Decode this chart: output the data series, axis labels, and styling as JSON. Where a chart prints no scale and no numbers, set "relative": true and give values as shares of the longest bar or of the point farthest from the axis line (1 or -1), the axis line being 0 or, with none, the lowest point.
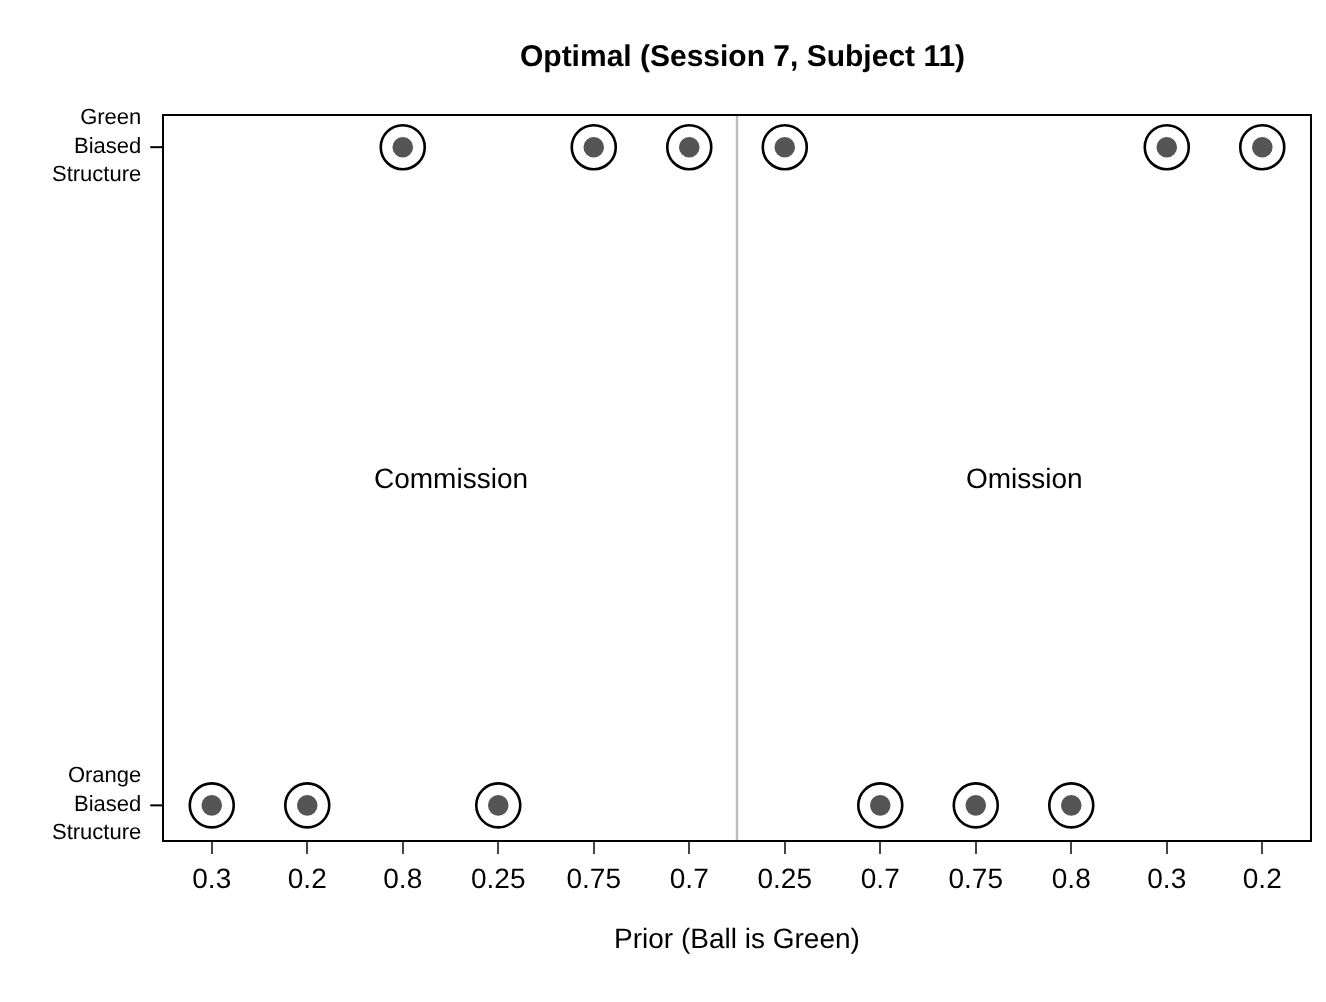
{
  "chart_data": {
    "type": "scatter",
    "title": "Optimal (Session 7, Subject 11)",
    "xlabel": "Prior (Ball is Green)",
    "categories": [
      "0.3",
      "0.2",
      "0.8",
      "0.25",
      "0.75",
      "0.7",
      "0.25",
      "0.7",
      "0.75",
      "0.8",
      "0.3",
      "0.2"
    ],
    "relative": true,
    "series": [
      {
        "color": "#000000",
        "marker": "circle-open",
        "values": [
          0.05,
          0.05,
          1,
          0.05,
          1,
          1,
          1,
          0.05,
          0.05,
          0.05,
          1,
          1
        ]
      },
      {
        "color": "#555555",
        "marker": "circle",
        "values": [
          0.05,
          0.05,
          1,
          0.05,
          1,
          1,
          1,
          0.05,
          0.05,
          0.05,
          1,
          1
        ]
      }
    ],
    "annotations": [
      "Green Biased Structure",
      "Orange Biased Structure",
      "Commission",
      "Omission"
    ],
    "grid": false
  }
}
